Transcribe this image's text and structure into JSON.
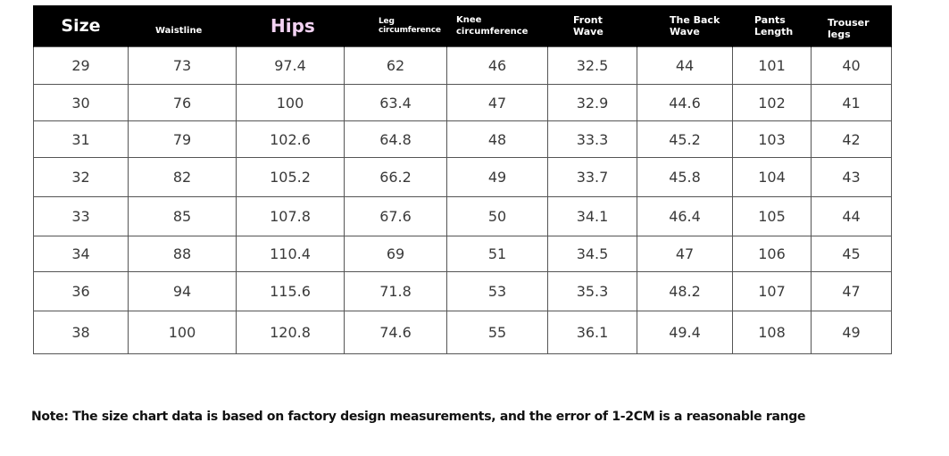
{
  "table": {
    "headers": {
      "size": "Size",
      "waistline": "Waistline",
      "hips": "Hips",
      "leg_line1": "Leg",
      "leg_line2": "circumference",
      "knee": "Knee circumference",
      "front_line1": "Front",
      "front_line2": "Wave",
      "back_line1": "The Back",
      "back_line2": "Wave",
      "pants_line1": "Pants",
      "pants_line2": "Length",
      "trouser_line1": "Trouser",
      "trouser_line2": "legs"
    },
    "rows": [
      [
        "29",
        "73",
        "97.4",
        "62",
        "46",
        "32.5",
        "44",
        "101",
        "40"
      ],
      [
        "30",
        "76",
        "100",
        "63.4",
        "47",
        "32.9",
        "44.6",
        "102",
        "41"
      ],
      [
        "31",
        "79",
        "102.6",
        "64.8",
        "48",
        "33.3",
        "45.2",
        "103",
        "42"
      ],
      [
        "32",
        "82",
        "105.2",
        "66.2",
        "49",
        "33.7",
        "45.8",
        "104",
        "43"
      ],
      [
        "33",
        "85",
        "107.8",
        "67.6",
        "50",
        "34.1",
        "46.4",
        "105",
        "44"
      ],
      [
        "34",
        "88",
        "110.4",
        "69",
        "51",
        "34.5",
        "47",
        "106",
        "45"
      ],
      [
        "36",
        "94",
        "115.6",
        "71.8",
        "53",
        "35.3",
        "48.2",
        "107",
        "47"
      ],
      [
        "38",
        "100",
        "120.8",
        "74.6",
        "55",
        "36.1",
        "49.4",
        "108",
        "49"
      ]
    ]
  },
  "note": "Note: The size chart data is based on factory design measurements, and the error of 1-2CM is a reasonable range",
  "colors": {
    "header_background": "#000000",
    "header_text": "#ffffff",
    "hips_header_text": "#f2d2f2",
    "grid_lines": "#555555"
  }
}
